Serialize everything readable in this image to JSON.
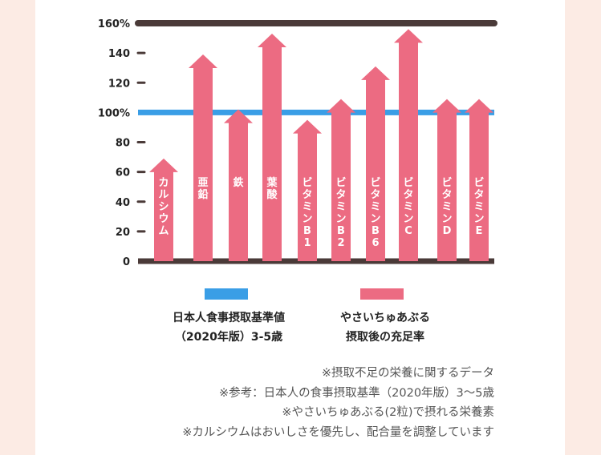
{
  "chart_data": {
    "type": "bar",
    "categories": [
      "カルシウム",
      "亜鉛",
      "鉄",
      "葉酸",
      "ビタミンB1",
      "ビタミンB2",
      "ビタミンB6",
      "ビタミンC",
      "ビタミンD",
      "ビタミンE"
    ],
    "values": [
      69,
      139,
      102,
      153,
      95,
      109,
      131,
      156,
      109,
      109
    ],
    "ylim": [
      0,
      160
    ],
    "yticks": [
      {
        "value": 0,
        "label": "0"
      },
      {
        "value": 20,
        "label": "20"
      },
      {
        "value": 40,
        "label": "40"
      },
      {
        "value": 60,
        "label": "60"
      },
      {
        "value": 80,
        "label": "80"
      },
      {
        "value": 100,
        "label": "100%"
      },
      {
        "value": 120,
        "label": "120"
      },
      {
        "value": 140,
        "label": "140"
      },
      {
        "value": 160,
        "label": "160%"
      }
    ],
    "reference_line": {
      "value": 100
    },
    "series": [
      {
        "name": "やさいちゅあぶる\n摂取後の充足率",
        "color": "#ec6b82"
      }
    ],
    "reference_series": {
      "name": "日本人食事摂取基準値\n（2020年版）3-5歳",
      "color": "#3a9ee6"
    },
    "axis_color": "#4a3a38",
    "reference_label_color": "#3a9ee6"
  },
  "legend": {
    "standard_label": "日本人食事摂取基準値\n（2020年版）3-5歳",
    "product_label": "やさいちゅあぶる\n摂取後の充足率"
  },
  "notes": [
    "※摂取不足の栄養に関するデータ",
    "※参考：日本人の食事摂取基準（2020年版）3〜5歳",
    "※やさいちゅあぶる(2粒)で摂れる栄養素",
    "※カルシウムはおいしさを優先し、配合量を調整しています"
  ]
}
